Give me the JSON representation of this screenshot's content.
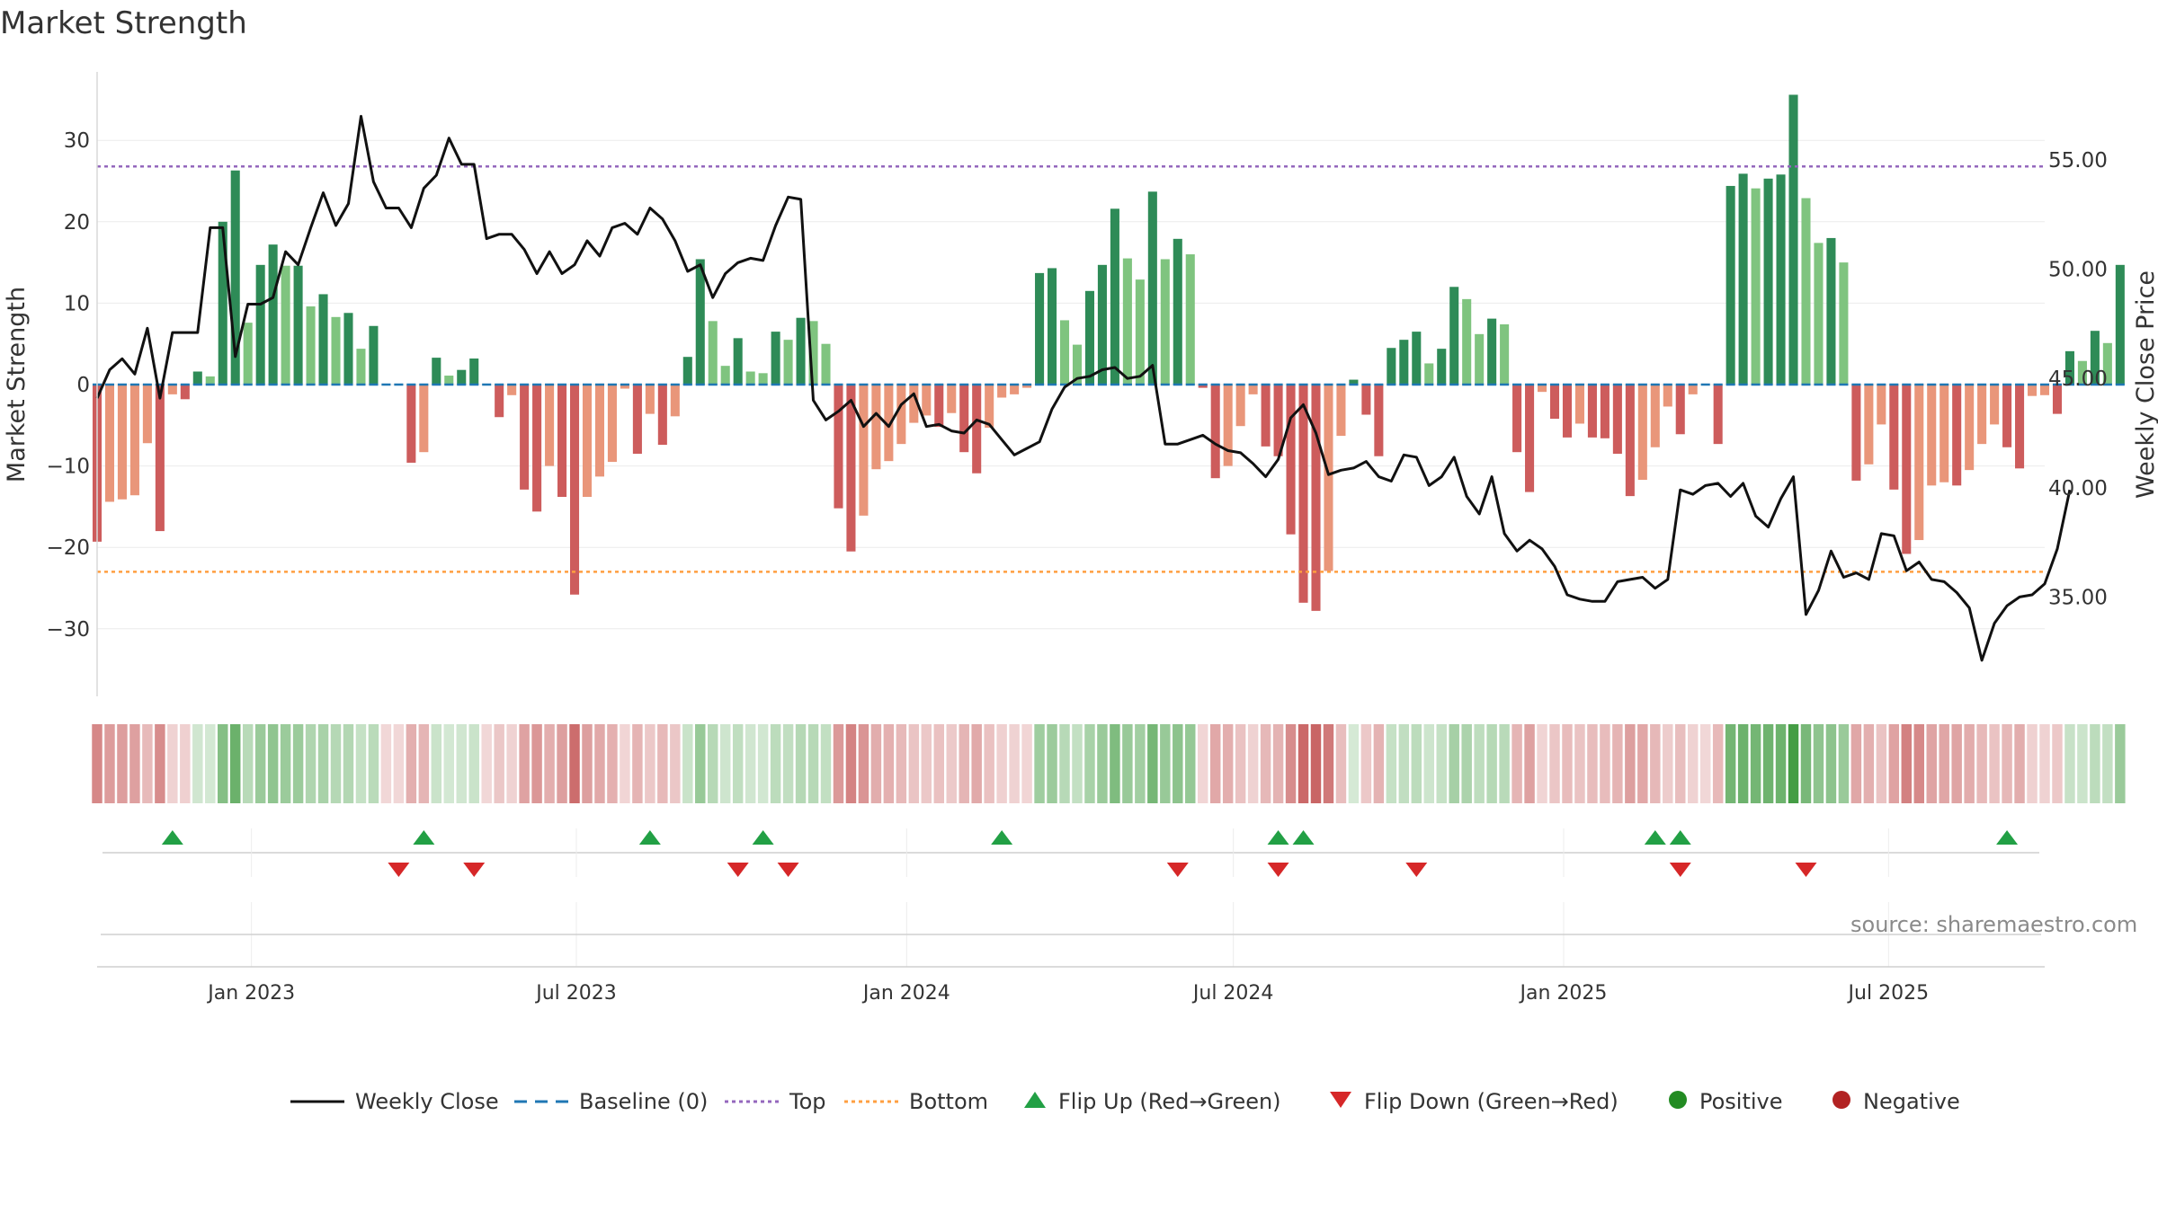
{
  "title": "Market Strength",
  "source": "source: sharemaestro.com",
  "colors": {
    "strong_green": "#2e8b57",
    "light_green": "#7fc47f",
    "strong_red": "#cd5c5c",
    "light_red": "#e9967a",
    "baseline": "#1f77b4",
    "top": "#9467bd",
    "bottom": "#ff9f40",
    "close_line": "#111111",
    "flip_up": "#22a045",
    "flip_down": "#d62728",
    "positive": "#228b22",
    "negative": "#b22222"
  },
  "legend": [
    {
      "key": "close",
      "label": "Weekly Close",
      "symbol": "line-solid"
    },
    {
      "key": "baseline",
      "label": "Baseline (0)",
      "symbol": "line-dashed"
    },
    {
      "key": "top",
      "label": "Top",
      "symbol": "line-dotted"
    },
    {
      "key": "bottom",
      "label": "Bottom",
      "symbol": "line-dotted"
    },
    {
      "key": "flip_up",
      "label": "Flip Up (Red→Green)",
      "symbol": "triangle-up"
    },
    {
      "key": "flip_down",
      "label": "Flip Down (Green→Red)",
      "symbol": "triangle-down"
    },
    {
      "key": "positive",
      "label": "Positive",
      "symbol": "circle"
    },
    {
      "key": "negative",
      "label": "Negative",
      "symbol": "circle"
    }
  ],
  "chart_data": {
    "type": "bar",
    "title": "Market Strength",
    "ylabel": "Market Strength",
    "y2label": "Weekly Close Price",
    "x_start": "2022-10-07",
    "x_end": "2025-09-26",
    "ylim": [
      -38,
      38
    ],
    "y2lim": [
      30.45,
      59.53
    ],
    "yticks": [
      30,
      20,
      10,
      0,
      -10,
      -20,
      -30
    ],
    "yticklabels": [
      "30",
      "20",
      "10",
      "0",
      "−10",
      "−20",
      "−30"
    ],
    "y2ticks": [
      55,
      50,
      45,
      40,
      35
    ],
    "y2ticklabels": [
      "55.00",
      "50.00",
      "45.00",
      "40.00",
      "35.00"
    ],
    "xticks": [
      "2023-01-01",
      "2023-07-01",
      "2024-01-01",
      "2024-07-01",
      "2025-01-01",
      "2025-07-01"
    ],
    "xticklabels": [
      "Jan 2023",
      "Jul 2023",
      "Jan 2024",
      "Jul 2024",
      "Jan 2025",
      "Jul 2025"
    ],
    "top_level": 26.8,
    "bottom_level": -23,
    "grid": true,
    "legend_position": "bottom",
    "weeks": 156,
    "strength": [
      -19.3,
      -14.4,
      -14.1,
      -13.6,
      -7.2,
      -18.0,
      -1.2,
      -1.8,
      1.6,
      1.0,
      20.0,
      26.3,
      7.6,
      14.7,
      17.2,
      14.6,
      14.6,
      9.6,
      11.1,
      8.3,
      8.8,
      4.4,
      7.2,
      0,
      0,
      -9.6,
      -8.3,
      3.3,
      1.1,
      1.8,
      3.2,
      0,
      -4.0,
      -1.3,
      -12.9,
      -15.6,
      -10.0,
      -13.8,
      -25.8,
      -13.8,
      -11.3,
      -9.5,
      -0.5,
      -8.5,
      -3.6,
      -7.4,
      -3.9,
      3.4,
      15.4,
      7.8,
      2.3,
      5.7,
      1.6,
      1.4,
      6.5,
      5.5,
      8.2,
      7.8,
      5.0,
      -15.2,
      -20.5,
      -16.1,
      -10.4,
      -9.4,
      -7.3,
      -4.7,
      -3.8,
      -5.2,
      -3.5,
      -8.3,
      -10.9,
      -5.3,
      -1.6,
      -1.2,
      -0.4,
      13.7,
      14.3,
      7.9,
      4.9,
      11.5,
      14.7,
      21.6,
      15.5,
      12.9,
      23.7,
      15.4,
      17.9,
      16.0,
      -0.4,
      -11.5,
      -10.0,
      -5.1,
      -1.2,
      -7.6,
      -8.8,
      -18.4,
      -26.8,
      -27.8,
      -22.9,
      -6.3,
      0.6,
      -3.7,
      -8.8,
      4.5,
      5.5,
      6.5,
      2.6,
      4.4,
      12.0,
      10.5,
      6.2,
      8.1,
      7.4,
      -8.3,
      -13.2,
      -0.9,
      -4.2,
      -6.5,
      -4.8,
      -6.5,
      -6.6,
      -8.5,
      -13.7,
      -11.7,
      -7.7,
      -2.7,
      -6.1,
      -1.2,
      0,
      -7.3,
      24.4,
      25.9,
      24.1,
      25.3,
      25.8,
      35.6,
      22.9,
      17.4,
      18.0,
      15.0,
      -11.8,
      -9.8,
      -4.9,
      -12.9,
      -20.8,
      -19.1,
      -12.4,
      -12.0,
      -12.4,
      -10.5,
      -7.3,
      -4.9,
      -7.7,
      -10.3,
      -1.4,
      -1.3,
      -3.6,
      4.1,
      2.9,
      6.6,
      5.1,
      14.7
    ],
    "close": [
      44.1,
      45.4,
      45.9,
      45.2,
      47.3,
      44.1,
      47.1,
      47.1,
      47.1,
      51.9,
      51.9,
      46.0,
      48.4,
      48.4,
      48.7,
      50.8,
      50.2,
      51.9,
      53.5,
      52.0,
      53.0,
      57.0,
      54.0,
      52.8,
      52.8,
      51.9,
      53.7,
      54.3,
      56.0,
      54.8,
      54.8,
      51.4,
      51.6,
      51.6,
      50.9,
      49.8,
      50.8,
      49.8,
      50.2,
      51.3,
      50.6,
      51.9,
      52.1,
      51.6,
      52.8,
      52.3,
      51.3,
      49.9,
      50.2,
      48.7,
      49.8,
      50.3,
      50.5,
      50.4,
      52.0,
      53.3,
      53.2,
      44.0,
      43.1,
      43.5,
      44.0,
      42.8,
      43.4,
      42.8,
      43.8,
      44.3,
      42.8,
      42.9,
      42.6,
      42.5,
      43.1,
      42.9,
      42.2,
      41.5,
      41.8,
      42.1,
      43.6,
      44.6,
      45.0,
      45.1,
      45.4,
      45.5,
      45.0,
      45.1,
      45.6,
      42.0,
      42.0,
      42.2,
      42.4,
      42.0,
      41.7,
      41.6,
      41.1,
      40.5,
      41.3,
      43.2,
      43.8,
      42.5,
      40.6,
      40.8,
      40.9,
      41.2,
      40.5,
      40.3,
      41.5,
      41.4,
      40.1,
      40.5,
      41.4,
      39.6,
      38.8,
      40.5,
      37.9,
      37.1,
      37.6,
      37.2,
      36.4,
      35.1,
      34.9,
      34.8,
      34.8,
      35.7,
      35.8,
      35.9,
      35.4,
      35.8,
      39.9,
      39.7,
      40.1,
      40.2,
      39.6,
      40.2,
      38.7,
      38.2,
      39.5,
      40.5,
      34.2,
      35.3,
      37.1,
      35.9,
      36.1,
      35.8,
      37.9,
      37.8,
      36.2,
      36.6,
      35.8,
      35.7,
      35.2,
      34.5,
      32.1,
      33.8,
      34.6,
      35.0,
      35.1,
      35.6,
      37.2,
      39.9
    ],
    "flip_up_dates": [
      "2022-11-18",
      "2023-04-07",
      "2023-08-11",
      "2023-10-13",
      "2024-02-23",
      "2024-07-26",
      "2024-08-09",
      "2025-02-21",
      "2025-03-07",
      "2025-09-05"
    ],
    "flip_down_dates": [
      "2023-03-24",
      "2023-05-05",
      "2023-09-29",
      "2023-10-27",
      "2024-05-31",
      "2024-07-26",
      "2024-10-11",
      "2025-03-07",
      "2025-05-16"
    ]
  }
}
